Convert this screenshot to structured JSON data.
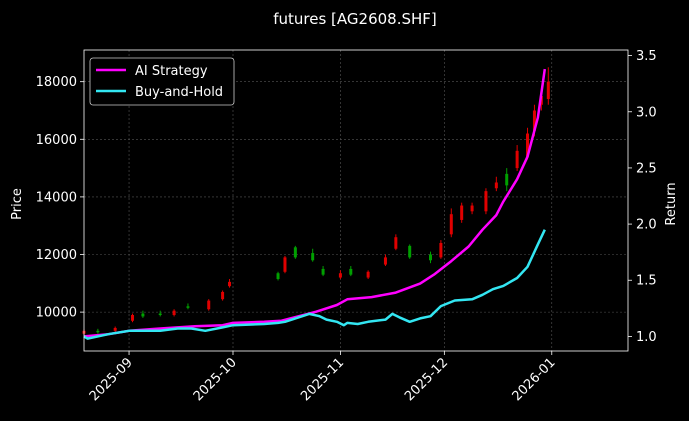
{
  "chart_data": {
    "type": "candlestick-line",
    "title": "futures [AG2608.SHF]",
    "ylabel_left": "Price",
    "ylabel_right": "Return",
    "ylim_left": [
      8650,
      19100
    ],
    "ylim_right": [
      0.87,
      3.55
    ],
    "xlim": [
      "2025-08-19",
      "2026-01-23"
    ],
    "yticks_left": [
      10000,
      12000,
      14000,
      16000,
      18000
    ],
    "yticks_left_labels": [
      "10000",
      "12000",
      "14000",
      "16000",
      "18000"
    ],
    "yticks_right": [
      1.0,
      1.5,
      2.0,
      2.5,
      3.0,
      3.5
    ],
    "yticks_right_labels": [
      "1.0",
      "1.5",
      "2.0",
      "2.5",
      "3.0",
      "3.5"
    ],
    "xticks": [
      "2025-09-01",
      "2025-10-01",
      "2025-11-01",
      "2025-12-01",
      "2026-01-01"
    ],
    "xtick_labels": [
      "2025-09",
      "2025-10",
      "2025-11",
      "2025-12",
      "2026-01"
    ],
    "grid": true,
    "legend_position": "upper-left",
    "colors": {
      "background": "#000000",
      "ai_strategy": "#ff00ff",
      "buy_and_hold": "#33e6f2",
      "candle_up": "#e00000",
      "candle_down": "#00a000",
      "grid": "#555555",
      "axis": "#ffffff"
    },
    "series": [
      {
        "name": "AI Strategy",
        "axis": "right",
        "points": [
          [
            "2025-08-19",
            1.0
          ],
          [
            "2025-08-26",
            1.02
          ],
          [
            "2025-09-01",
            1.05
          ],
          [
            "2025-09-10",
            1.07
          ],
          [
            "2025-09-20",
            1.09
          ],
          [
            "2025-09-28",
            1.1
          ],
          [
            "2025-10-01",
            1.12
          ],
          [
            "2025-10-10",
            1.13
          ],
          [
            "2025-10-15",
            1.14
          ],
          [
            "2025-10-20",
            1.18
          ],
          [
            "2025-10-25",
            1.22
          ],
          [
            "2025-10-31",
            1.28
          ],
          [
            "2025-11-03",
            1.33
          ],
          [
            "2025-11-10",
            1.35
          ],
          [
            "2025-11-17",
            1.39
          ],
          [
            "2025-11-24",
            1.47
          ],
          [
            "2025-11-28",
            1.55
          ],
          [
            "2025-12-03",
            1.67
          ],
          [
            "2025-12-08",
            1.8
          ],
          [
            "2025-12-12",
            1.95
          ],
          [
            "2025-12-16",
            2.08
          ],
          [
            "2025-12-18",
            2.2
          ],
          [
            "2025-12-22",
            2.4
          ],
          [
            "2025-12-25",
            2.6
          ],
          [
            "2025-12-28",
            2.95
          ],
          [
            "2025-12-30",
            3.38
          ]
        ]
      },
      {
        "name": "Buy-and-Hold",
        "axis": "right",
        "points": [
          [
            "2025-08-19",
            1.0
          ],
          [
            "2025-08-20",
            0.98
          ],
          [
            "2025-08-26",
            1.02
          ],
          [
            "2025-09-01",
            1.05
          ],
          [
            "2025-09-10",
            1.05
          ],
          [
            "2025-09-15",
            1.07
          ],
          [
            "2025-09-19",
            1.07
          ],
          [
            "2025-09-23",
            1.05
          ],
          [
            "2025-09-28",
            1.08
          ],
          [
            "2025-10-01",
            1.1
          ],
          [
            "2025-10-10",
            1.11
          ],
          [
            "2025-10-14",
            1.12
          ],
          [
            "2025-10-16",
            1.13
          ],
          [
            "2025-10-19",
            1.16
          ],
          [
            "2025-10-23",
            1.2
          ],
          [
            "2025-10-26",
            1.18
          ],
          [
            "2025-10-28",
            1.15
          ],
          [
            "2025-10-31",
            1.13
          ],
          [
            "2025-11-02",
            1.1
          ],
          [
            "2025-11-03",
            1.12
          ],
          [
            "2025-11-06",
            1.11
          ],
          [
            "2025-11-09",
            1.13
          ],
          [
            "2025-11-14",
            1.15
          ],
          [
            "2025-11-16",
            1.2
          ],
          [
            "2025-11-18",
            1.17
          ],
          [
            "2025-11-21",
            1.13
          ],
          [
            "2025-11-24",
            1.16
          ],
          [
            "2025-11-27",
            1.18
          ],
          [
            "2025-11-30",
            1.27
          ],
          [
            "2025-12-04",
            1.32
          ],
          [
            "2025-12-09",
            1.33
          ],
          [
            "2025-12-12",
            1.37
          ],
          [
            "2025-12-15",
            1.42
          ],
          [
            "2025-12-18",
            1.45
          ],
          [
            "2025-12-22",
            1.52
          ],
          [
            "2025-12-25",
            1.62
          ],
          [
            "2025-12-28",
            1.82
          ],
          [
            "2025-12-30",
            1.95
          ]
        ]
      }
    ],
    "candles": [
      {
        "date": "2025-08-19",
        "open": 9250,
        "close": 9350,
        "high": 9400,
        "low": 9200
      },
      {
        "date": "2025-08-23",
        "open": 9350,
        "close": 9300,
        "high": 9420,
        "low": 9250
      },
      {
        "date": "2025-08-28",
        "open": 9350,
        "close": 9450,
        "high": 9500,
        "low": 9300
      },
      {
        "date": "2025-09-02",
        "open": 9700,
        "close": 9900,
        "high": 9950,
        "low": 9650
      },
      {
        "date": "2025-09-05",
        "open": 9950,
        "close": 9850,
        "high": 10050,
        "low": 9800
      },
      {
        "date": "2025-09-10",
        "open": 9950,
        "close": 9900,
        "high": 10050,
        "low": 9850
      },
      {
        "date": "2025-09-14",
        "open": 9900,
        "close": 10050,
        "high": 10100,
        "low": 9850
      },
      {
        "date": "2025-09-18",
        "open": 10200,
        "close": 10150,
        "high": 10300,
        "low": 10100
      },
      {
        "date": "2025-09-24",
        "open": 10100,
        "close": 10400,
        "high": 10450,
        "low": 10050
      },
      {
        "date": "2025-09-28",
        "open": 10450,
        "close": 10700,
        "high": 10750,
        "low": 10400
      },
      {
        "date": "2025-09-30",
        "open": 10900,
        "close": 11050,
        "high": 11150,
        "low": 10850
      },
      {
        "date": "2025-10-14",
        "open": 11350,
        "close": 11150,
        "high": 11400,
        "low": 11100
      },
      {
        "date": "2025-10-16",
        "open": 11400,
        "close": 11900,
        "high": 11950,
        "low": 11350
      },
      {
        "date": "2025-10-19",
        "open": 12250,
        "close": 11900,
        "high": 12300,
        "low": 11850
      },
      {
        "date": "2025-10-24",
        "open": 12050,
        "close": 11800,
        "high": 12200,
        "low": 11750
      },
      {
        "date": "2025-10-27",
        "open": 11500,
        "close": 11300,
        "high": 11600,
        "low": 11250
      },
      {
        "date": "2025-11-01",
        "open": 11200,
        "close": 11350,
        "high": 11450,
        "low": 11150
      },
      {
        "date": "2025-11-04",
        "open": 11500,
        "close": 11300,
        "high": 11600,
        "low": 11250
      },
      {
        "date": "2025-11-09",
        "open": 11200,
        "close": 11400,
        "high": 11450,
        "low": 11150
      },
      {
        "date": "2025-11-14",
        "open": 11650,
        "close": 11900,
        "high": 12000,
        "low": 11600
      },
      {
        "date": "2025-11-17",
        "open": 12200,
        "close": 12600,
        "high": 12700,
        "low": 12150
      },
      {
        "date": "2025-11-21",
        "open": 12300,
        "close": 11900,
        "high": 12350,
        "low": 11850
      },
      {
        "date": "2025-11-27",
        "open": 12000,
        "close": 11800,
        "high": 12100,
        "low": 11700
      },
      {
        "date": "2025-11-30",
        "open": 11900,
        "close": 12400,
        "high": 12500,
        "low": 11850
      },
      {
        "date": "2025-12-03",
        "open": 12700,
        "close": 13400,
        "high": 13600,
        "low": 12600
      },
      {
        "date": "2025-12-06",
        "open": 13200,
        "close": 13700,
        "high": 13800,
        "low": 13100
      },
      {
        "date": "2025-12-09",
        "open": 13500,
        "close": 13700,
        "high": 13800,
        "low": 13400
      },
      {
        "date": "2025-12-13",
        "open": 13500,
        "close": 14200,
        "high": 14300,
        "low": 13400
      },
      {
        "date": "2025-12-16",
        "open": 14300,
        "close": 14500,
        "high": 14700,
        "low": 14200
      },
      {
        "date": "2025-12-19",
        "open": 14800,
        "close": 14400,
        "high": 15000,
        "low": 14200
      },
      {
        "date": "2025-12-22",
        "open": 15000,
        "close": 15600,
        "high": 15800,
        "low": 14900
      },
      {
        "date": "2025-12-25",
        "open": 15400,
        "close": 16200,
        "high": 16400,
        "low": 15300
      },
      {
        "date": "2025-12-27",
        "open": 16300,
        "close": 17000,
        "high": 17200,
        "low": 16100
      },
      {
        "date": "2025-12-29",
        "open": 17200,
        "close": 17500,
        "high": 17700,
        "low": 17000
      },
      {
        "date": "2025-12-31",
        "open": 17400,
        "close": 18000,
        "high": 18500,
        "low": 17200
      }
    ]
  }
}
